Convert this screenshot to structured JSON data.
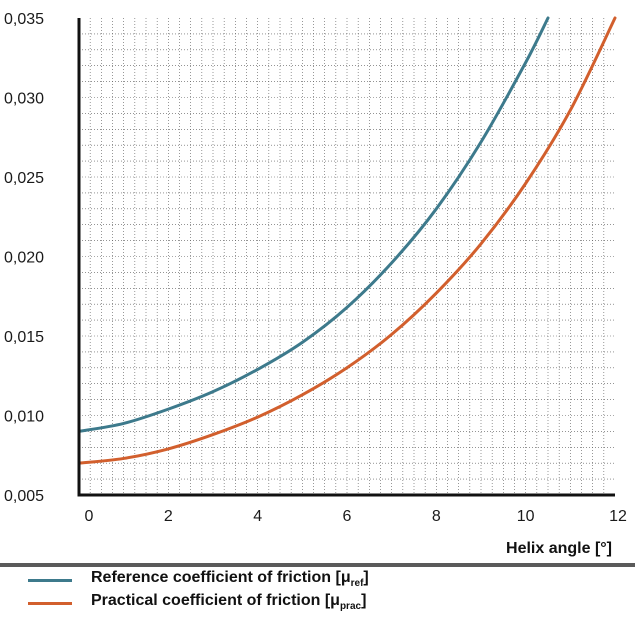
{
  "chart_data": {
    "type": "line",
    "xlabel": "Helix angle [°]",
    "ylabel": "",
    "xlim": [
      0,
      12
    ],
    "ylim": [
      0.005,
      0.035
    ],
    "x_ticks": [
      "0",
      "2",
      "4",
      "6",
      "8",
      "10",
      "12"
    ],
    "y_ticks": [
      "0,005",
      "0,010",
      "0,015",
      "0,020",
      "0,025",
      "0,030",
      "0,035"
    ],
    "grid": true,
    "series": [
      {
        "name": "Reference coefficient of friction [μref]",
        "label_main": "Reference coefficient of friction [μ",
        "label_sub": "ref",
        "label_end": "]",
        "color": "#3d7a8c",
        "x": [
          0,
          1,
          2,
          3,
          4,
          5,
          6,
          7,
          8,
          9,
          10,
          10.5
        ],
        "y": [
          0.009,
          0.0095,
          0.0104,
          0.0115,
          0.0129,
          0.0146,
          0.0168,
          0.0196,
          0.023,
          0.0272,
          0.0322,
          0.035
        ]
      },
      {
        "name": "Practical coefficient of friction [μprac]",
        "label_main": "Practical coefficient of friction [μ",
        "label_sub": "prac",
        "label_end": "]",
        "color": "#d25f2d",
        "x": [
          0,
          1,
          2,
          3,
          4,
          5,
          6,
          7,
          8,
          9,
          10,
          11,
          12
        ],
        "y": [
          0.007,
          0.0073,
          0.0079,
          0.0088,
          0.0099,
          0.0113,
          0.013,
          0.0151,
          0.0177,
          0.0208,
          0.0246,
          0.0292,
          0.035
        ]
      }
    ]
  }
}
